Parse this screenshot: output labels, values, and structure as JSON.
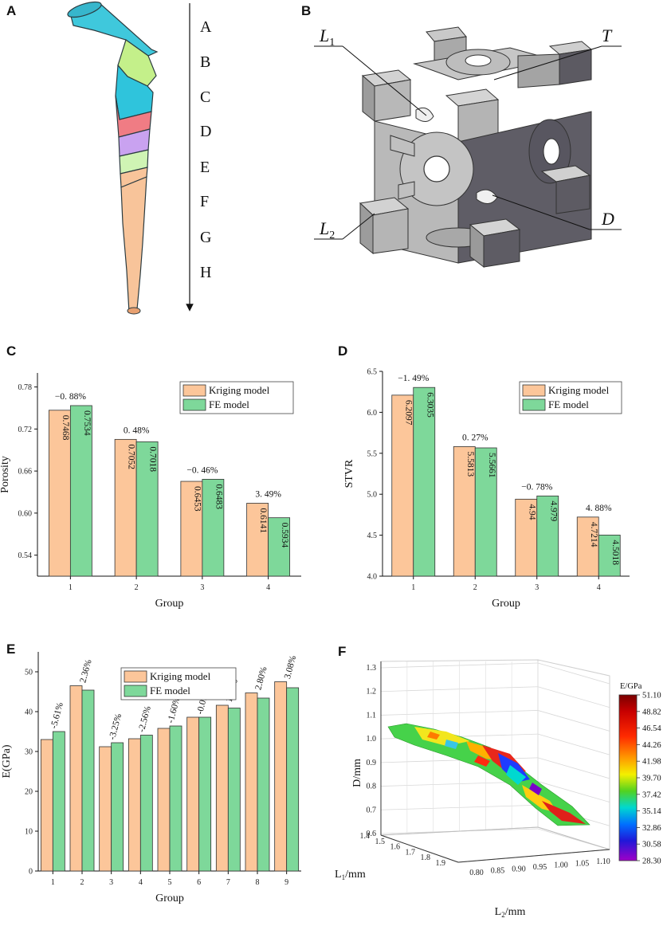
{
  "panels": {
    "a": {
      "letter": "A",
      "segments": [
        "A",
        "B",
        "C",
        "D",
        "E",
        "F",
        "G",
        "H"
      ],
      "segment_colors": [
        "#3fc8dc",
        "#c4f08a",
        "#2fc4dc",
        "#f07c84",
        "#c9a2f0",
        "#cff4b4",
        "#f8c49a",
        "#f8c49a"
      ]
    },
    "b": {
      "letter": "B",
      "labels": {
        "l1": "L",
        "l1_sub": "1",
        "t": "T",
        "l2": "L",
        "l2_sub": "2",
        "d": "D"
      }
    }
  },
  "colors": {
    "kriging": "#fcc69a",
    "fe": "#7ed89a"
  },
  "chart_data": [
    {
      "id": "C",
      "letter": "C",
      "type": "bar",
      "xlabel": "Group",
      "ylabel": "Porosity",
      "ylim": [
        0.51,
        0.8
      ],
      "yticks": [
        0.54,
        0.6,
        0.66,
        0.72,
        0.78
      ],
      "ytick_labels": [
        "0.54",
        "0.60",
        "0.66",
        "0.72",
        "0.78"
      ],
      "categories": [
        "1",
        "2",
        "3",
        "4"
      ],
      "series": [
        {
          "name": "Kriging model",
          "values": [
            0.7468,
            0.7052,
            0.6453,
            0.6141
          ],
          "labels": [
            "0.7468",
            "0.7052",
            "0.6453",
            "0.6141"
          ]
        },
        {
          "name": "FE model",
          "values": [
            0.7534,
            0.7018,
            0.6483,
            0.5934
          ],
          "labels": [
            "0.7534",
            "0.7018",
            "0.6483",
            "0.5934"
          ]
        }
      ],
      "errors": [
        "−0. 88%",
        "0. 48%",
        "−0. 46%",
        "3. 49%"
      ],
      "legend": "top-right"
    },
    {
      "id": "D",
      "letter": "D",
      "type": "bar",
      "xlabel": "Group",
      "ylabel": "STVR",
      "ylim": [
        4.0,
        6.5
      ],
      "yticks": [
        4.0,
        4.5,
        5.0,
        5.5,
        6.0,
        6.5
      ],
      "ytick_labels": [
        "4.0",
        "4.5",
        "5.0",
        "5.5",
        "6.0",
        "6.5"
      ],
      "categories": [
        "1",
        "2",
        "3",
        "4"
      ],
      "series": [
        {
          "name": "Kriging model",
          "values": [
            6.2097,
            5.5813,
            4.94,
            4.7214
          ],
          "labels": [
            "6.2097",
            "5.5813",
            "4.94",
            "4.7214"
          ]
        },
        {
          "name": "FE model",
          "values": [
            6.3035,
            5.5661,
            4.979,
            4.5018
          ],
          "labels": [
            "6.3035",
            "5.5661",
            "4.979",
            "4.5018"
          ]
        }
      ],
      "errors": [
        "−1. 49%",
        "0. 27%",
        "−0. 78%",
        "4. 88%"
      ],
      "legend": "top-right"
    },
    {
      "id": "E",
      "letter": "E",
      "type": "bar",
      "xlabel": "Group",
      "ylabel": "E(GPa)",
      "ylim": [
        0,
        55
      ],
      "yticks": [
        0,
        10,
        20,
        30,
        40,
        50
      ],
      "ytick_labels": [
        "0",
        "10",
        "20",
        "30",
        "40",
        "50"
      ],
      "categories": [
        "1",
        "2",
        "3",
        "4",
        "5",
        "6",
        "7",
        "8",
        "9"
      ],
      "series": [
        {
          "name": "Kriging model",
          "values": [
            33.0,
            46.5,
            31.2,
            33.2,
            35.8,
            38.6,
            41.6,
            44.7,
            47.5
          ]
        },
        {
          "name": "FE model",
          "values": [
            35.0,
            45.4,
            32.2,
            34.1,
            36.4,
            38.6,
            40.9,
            43.4,
            46.0
          ]
        }
      ],
      "errors": [
        "-5.61%",
        "2.36%",
        "-3.25%",
        "-2.56%",
        "-1.60%",
        "-0.09%",
        "1.62%",
        "2.80%",
        "3.08%"
      ],
      "legend": "top-left"
    },
    {
      "id": "F",
      "letter": "F",
      "type": "surface",
      "zlabel": "D/mm",
      "xlabel": "L",
      "xlabel_sub": "2",
      "xlabel_unit": "/mm",
      "ylabel": "L",
      "ylabel_sub": "1",
      "ylabel_unit": "/mm",
      "zticks": [
        "0.6",
        "0.7",
        "0.8",
        "0.9",
        "1.0",
        "1.1",
        "1.2",
        "1.3"
      ],
      "x_ticks": [
        "0.80",
        "0.85",
        "0.90",
        "0.95",
        "1.00",
        "1.05",
        "1.10"
      ],
      "y_ticks": [
        "1.4",
        "1.5",
        "1.6",
        "1.7",
        "1.8",
        "1.9"
      ],
      "colorbar_title": "E/GPa",
      "colorbar_ticks": [
        "51.10",
        "48.82",
        "46.54",
        "44.26",
        "41.98",
        "39.70",
        "37.42",
        "35.14",
        "32.86",
        "30.58",
        "28.30"
      ]
    }
  ]
}
